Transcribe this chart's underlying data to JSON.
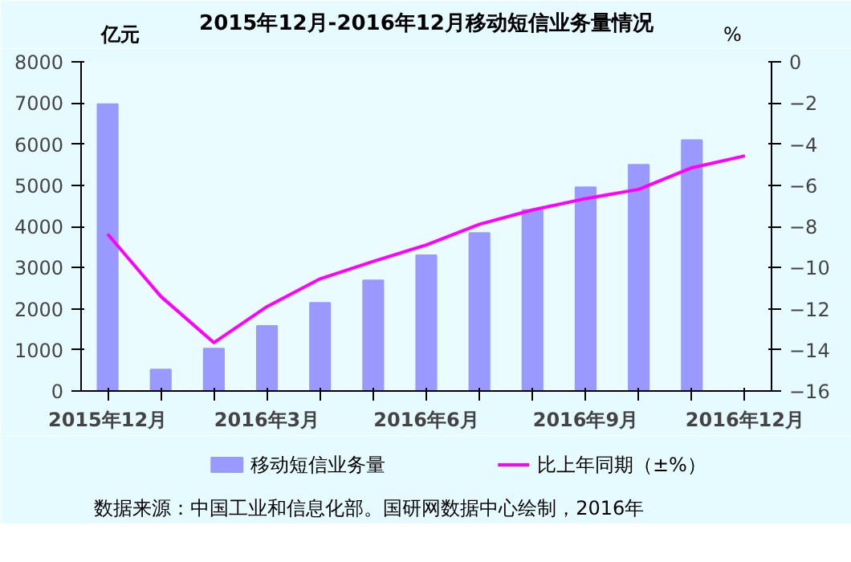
{
  "chart_data": {
    "type": "bar",
    "title": "2015年12月-2016年12月移动短信业务量情况",
    "ylabel": "亿元",
    "y2label": "%",
    "categories": [
      "2015年12月",
      null,
      null,
      "2016年3月",
      null,
      null,
      "2016年6月",
      null,
      null,
      "2016年9月",
      null,
      null,
      "2016年12月"
    ],
    "series": [
      {
        "name": "移动短信业务量",
        "color": "#9999ff",
        "values": [
          6970,
          520,
          1030,
          1580,
          2140,
          2690,
          3300,
          3840,
          4400,
          4950,
          5500,
          6100,
          null
        ]
      },
      {
        "name": "比上年同期（±%）",
        "type": "line",
        "axis": "y2",
        "color": "#ff00ff",
        "values": [
          -8.37,
          -11.4,
          -13.65,
          -11.9,
          -10.55,
          -9.7,
          -8.9,
          -7.9,
          -7.2,
          -6.65,
          -6.2,
          -5.15,
          -4.57
        ]
      }
    ],
    "ylim": [
      0,
      8000
    ],
    "yticks": [
      0,
      1000,
      2000,
      3000,
      4000,
      5000,
      6000,
      7000,
      8000
    ],
    "y2lim": [
      -16,
      0
    ],
    "y2ticks": [
      -16,
      -14,
      -12,
      -10,
      -8,
      -6,
      -4,
      -2,
      0
    ],
    "grid": false,
    "legend": "bottom",
    "annotations": [
      "数据来源：中国工业和信息化部。国研网数据中心绘制，2016年"
    ]
  }
}
